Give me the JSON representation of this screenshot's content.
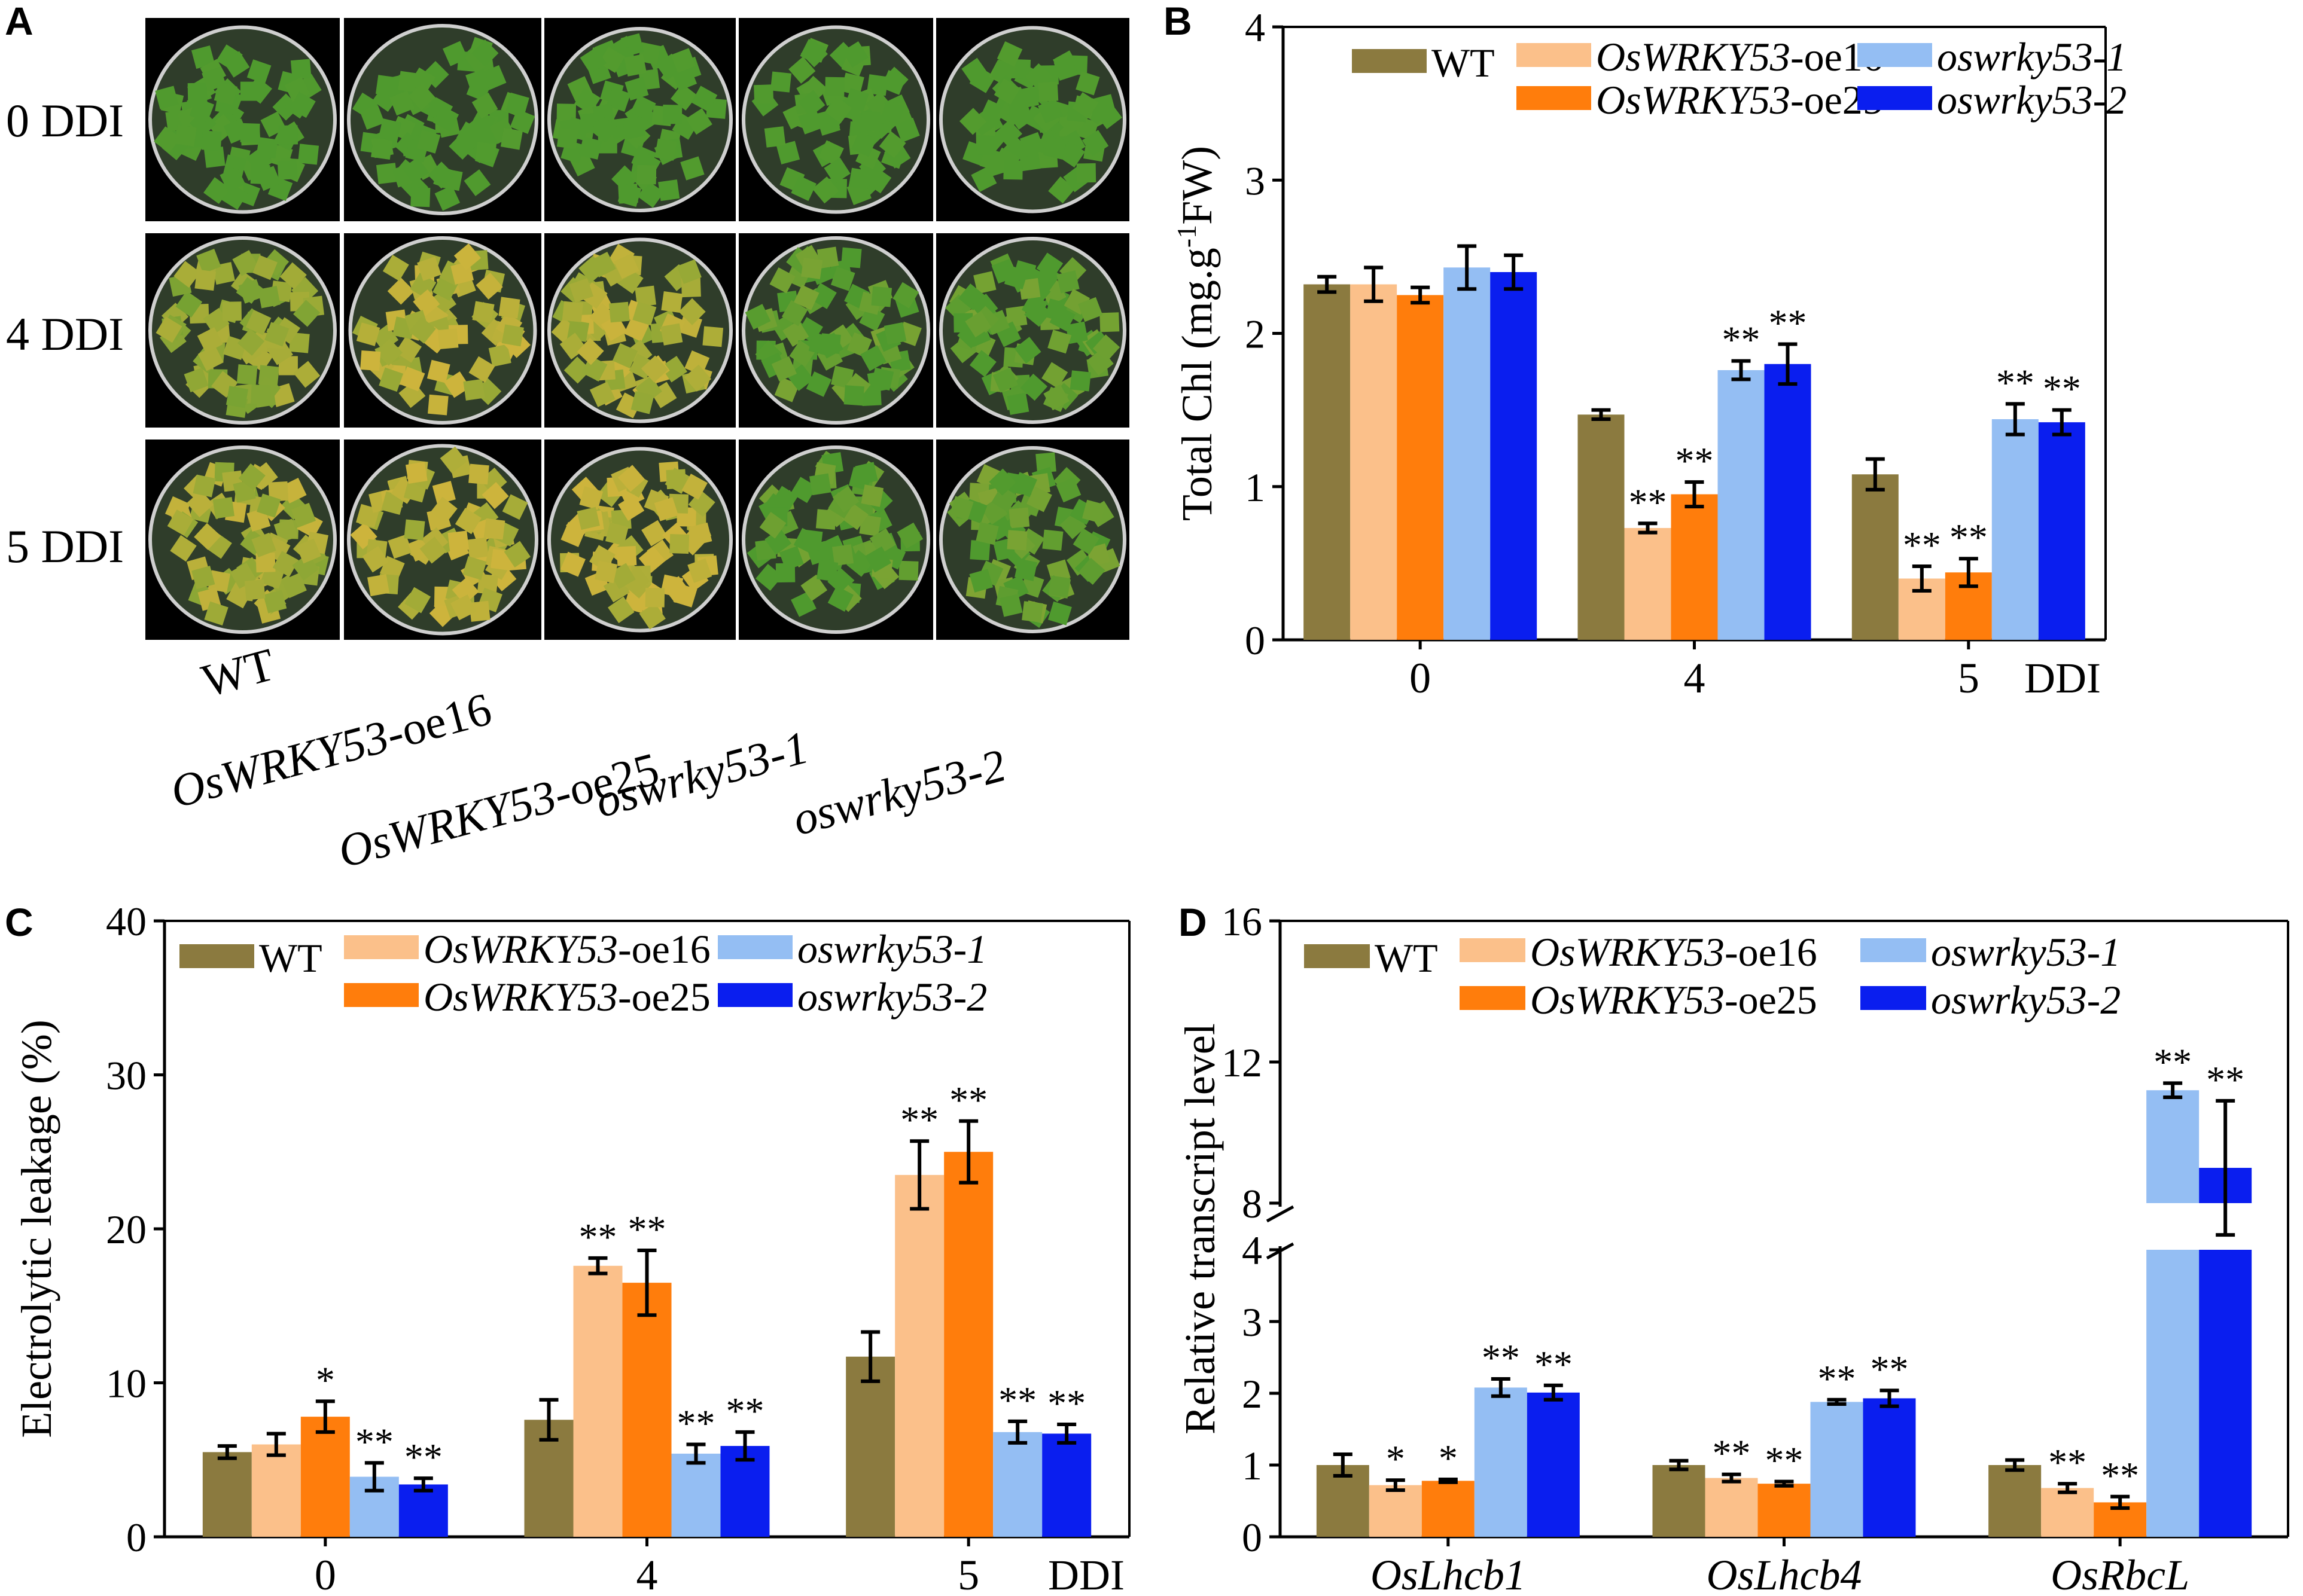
{
  "figure": {
    "panels": [
      "A",
      "B",
      "C",
      "D"
    ],
    "colors": {
      "WT": "#8b7a3f",
      "oe16": "#fbc08a",
      "oe25": "#ff7d0c",
      "ko1": "#94bef3",
      "ko2": "#0a1eef",
      "leaf_green": "#4f9a2e",
      "leaf_yellow": "#c8b43c",
      "dish_border": "#cfcfcf"
    }
  },
  "photo_panel": {
    "row_labels": [
      "0 DDI",
      "4 DDI",
      "5 DDI"
    ],
    "genotype_labels": [
      {
        "prefix": "WT",
        "suffix": "",
        "italic": false
      },
      {
        "prefix": "OsWRKY53",
        "suffix": "-oe16",
        "italic": true
      },
      {
        "prefix": "OsWRKY53",
        "suffix": "-oe25",
        "italic": true
      },
      {
        "prefix": "oswrky53-1",
        "suffix": "",
        "italic": true
      },
      {
        "prefix": "oswrky53-2",
        "suffix": "",
        "italic": true
      }
    ],
    "yellowing_level": [
      [
        0,
        0,
        0,
        0,
        0
      ],
      [
        0.55,
        0.8,
        0.75,
        0.1,
        0.1
      ],
      [
        0.7,
        0.85,
        0.85,
        0.1,
        0.15
      ]
    ]
  },
  "legend": [
    {
      "key": "WT",
      "prefix": "WT",
      "suffix": "",
      "italic": false
    },
    {
      "key": "oe16",
      "prefix": "OsWRKY53",
      "suffix": "-oe16",
      "italic": true
    },
    {
      "key": "oe25",
      "prefix": "OsWRKY53",
      "suffix": "-oe25",
      "italic": true
    },
    {
      "key": "ko1",
      "prefix": "oswrky53-1",
      "suffix": "",
      "italic": true
    },
    {
      "key": "ko2",
      "prefix": "oswrky53-2",
      "suffix": "",
      "italic": true
    }
  ],
  "chart_data": [
    {
      "panel": "B",
      "type": "bar",
      "ylabel_main": "Total Chl (mg.g",
      "ylabel_sup": "-1",
      "ylabel_end": "FW)",
      "xunit": "DDI",
      "ylim": [
        0,
        4
      ],
      "yticks": [
        0,
        1,
        2,
        3,
        4
      ],
      "categories": [
        "0",
        "4",
        "5"
      ],
      "series": [
        {
          "key": "WT",
          "values": [
            2.32,
            1.47,
            1.08
          ],
          "errors": [
            0.05,
            0.03,
            0.1
          ],
          "stars": [
            "",
            "",
            ""
          ]
        },
        {
          "key": "oe16",
          "values": [
            2.32,
            0.73,
            0.4
          ],
          "errors": [
            0.11,
            0.03,
            0.08
          ],
          "stars": [
            "",
            "**",
            "**"
          ]
        },
        {
          "key": "oe25",
          "values": [
            2.25,
            0.95,
            0.44
          ],
          "errors": [
            0.05,
            0.08,
            0.09
          ],
          "stars": [
            "",
            "**",
            "**"
          ]
        },
        {
          "key": "ko1",
          "values": [
            2.43,
            1.76,
            1.44
          ],
          "errors": [
            0.14,
            0.06,
            0.1
          ],
          "stars": [
            "",
            "**",
            "**"
          ]
        },
        {
          "key": "ko2",
          "values": [
            2.4,
            1.8,
            1.42
          ],
          "errors": [
            0.11,
            0.13,
            0.08
          ],
          "stars": [
            "",
            "**",
            "**"
          ]
        }
      ]
    },
    {
      "panel": "C",
      "type": "bar",
      "ylabel": "Electrolytic leakage (%)",
      "xunit": "DDI",
      "ylim": [
        0,
        40
      ],
      "yticks": [
        0,
        10,
        20,
        30,
        40
      ],
      "categories": [
        "0",
        "4",
        "5"
      ],
      "series": [
        {
          "key": "WT",
          "values": [
            5.5,
            7.6,
            11.7
          ],
          "errors": [
            0.4,
            1.3,
            1.6
          ],
          "stars": [
            "",
            "",
            ""
          ]
        },
        {
          "key": "oe16",
          "values": [
            6.0,
            17.6,
            23.5
          ],
          "errors": [
            0.7,
            0.5,
            2.2
          ],
          "stars": [
            "",
            "**",
            "**"
          ]
        },
        {
          "key": "oe25",
          "values": [
            7.8,
            16.5,
            25.0
          ],
          "errors": [
            1.0,
            2.1,
            2.0
          ],
          "stars": [
            "*",
            "**",
            "**"
          ]
        },
        {
          "key": "ko1",
          "values": [
            3.9,
            5.4,
            6.8
          ],
          "errors": [
            0.9,
            0.6,
            0.7
          ],
          "stars": [
            "**",
            "**",
            "**"
          ]
        },
        {
          "key": "ko2",
          "values": [
            3.4,
            5.9,
            6.7
          ],
          "errors": [
            0.4,
            0.9,
            0.6
          ],
          "stars": [
            "**",
            "**",
            "**"
          ]
        }
      ]
    },
    {
      "panel": "D",
      "type": "bar",
      "ylabel": "Relative transcript level",
      "broken_axis": {
        "lower": [
          0,
          4
        ],
        "upper": [
          8,
          16
        ]
      },
      "yticks_lower": [
        0,
        1,
        2,
        3,
        4
      ],
      "yticks_upper": [
        8,
        12,
        16
      ],
      "categories": [
        "OsLhcb1",
        "OsLhcb4",
        "OsRbcL"
      ],
      "series": [
        {
          "key": "WT",
          "values": [
            1.0,
            1.0,
            1.0
          ],
          "errors": [
            0.15,
            0.06,
            0.07
          ],
          "stars": [
            "",
            "",
            ""
          ]
        },
        {
          "key": "oe16",
          "values": [
            0.72,
            0.82,
            0.68
          ],
          "errors": [
            0.07,
            0.05,
            0.06
          ],
          "stars": [
            "*",
            "**",
            "**"
          ]
        },
        {
          "key": "oe25",
          "values": [
            0.78,
            0.74,
            0.48
          ],
          "errors": [
            0.02,
            0.03,
            0.08
          ],
          "stars": [
            "*",
            "**",
            "**"
          ]
        },
        {
          "key": "ko1",
          "values": [
            2.08,
            1.88,
            11.2
          ],
          "errors": [
            0.12,
            0.03,
            0.2
          ],
          "stars": [
            "**",
            "**",
            "**"
          ]
        },
        {
          "key": "ko2",
          "values": [
            2.01,
            1.93,
            9.0
          ],
          "errors": [
            0.1,
            0.11,
            1.9
          ],
          "stars": [
            "**",
            "**",
            "**"
          ]
        }
      ]
    }
  ]
}
